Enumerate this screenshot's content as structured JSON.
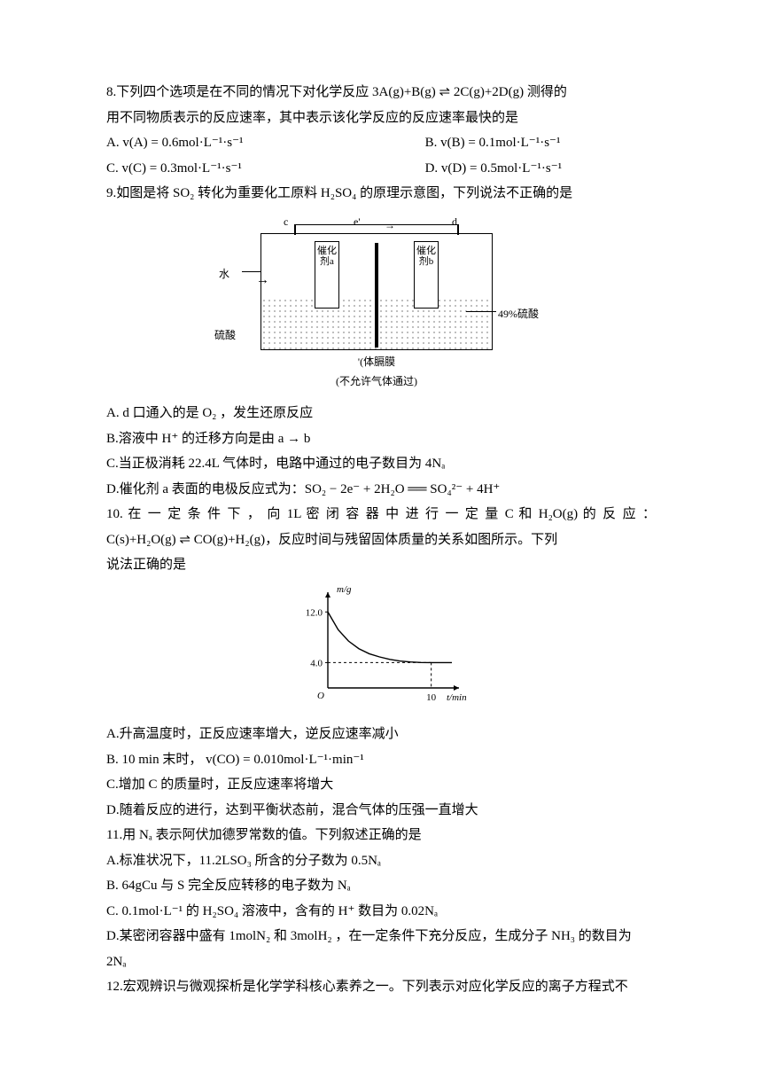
{
  "q8": {
    "stem_a": "8.下列四个选项是在不同的情况下对化学反应 3A(g)+B(g) ⇌ 2C(g)+2D(g) 测得的",
    "stem_b": "用不同物质表示的反应速率，其中表示该化学反应的反应速率最快的是",
    "A": "A. v(A) = 0.6mol·L⁻¹·s⁻¹",
    "B": "B. v(B) = 0.1mol·L⁻¹·s⁻¹",
    "C": "C. v(C) = 0.3mol·L⁻¹·s⁻¹",
    "D": "D. v(D) = 0.5mol·L⁻¹·s⁻¹"
  },
  "q9": {
    "stem": "9.如图是将 SO₂ 转化为重要化工原料 H₂SO₄ 的原理示意图，下列说法不正确的是",
    "diagram": {
      "top_labels": {
        "left": "c",
        "mid": "e'",
        "right": "d"
      },
      "water_label": "水",
      "electrode_left": "催化剂a",
      "electrode_right": "催化剂b",
      "acid_left": "硫酸",
      "acid_right": "49%硫酸",
      "bottom_caption": "'(体膈膜\n(不允许气体通过)",
      "colors": {
        "stroke": "#000000",
        "bg": "#ffffff"
      }
    },
    "A": "A. d 口通入的是 O₂ ，发生还原反应",
    "B": "B.溶液中 H⁺ 的迁移方向是由 a → b",
    "C": "C.当正极消耗 22.4L 气体时，电路中通过的电子数目为 4Nₐ",
    "D": "D.催化剂 a 表面的电极反应式为：SO₂ − 2e⁻ + 2H₂O ══ SO₄²⁻ + 4H⁺"
  },
  "q10": {
    "stem_a": "10. 在 一 定 条 件 下 ， 向 1L 密 闭 容 器 中 进 行 一 定 量 C 和 H₂O(g) 的 反 应 ：",
    "stem_b1": "C(s)+H₂O(g) ⇌ CO(g)+H₂(g)",
    "stem_b2": "，反应时间与残留固体质量的关系如图所示。下列",
    "stem_c": "说法正确的是",
    "chart": {
      "type": "line-decay",
      "y_label": "m/g",
      "x_label": "t/min",
      "y_ticks": [
        4.0,
        12.0
      ],
      "x_ticks": [
        10
      ],
      "x_range": [
        0,
        12
      ],
      "y_range": [
        0,
        14
      ],
      "points": [
        [
          0,
          12
        ],
        [
          1,
          9.2
        ],
        [
          2,
          7.4
        ],
        [
          3,
          6.2
        ],
        [
          4,
          5.4
        ],
        [
          5,
          4.9
        ],
        [
          6,
          4.5
        ],
        [
          7,
          4.25
        ],
        [
          8,
          4.1
        ],
        [
          9,
          4.02
        ],
        [
          10,
          4.0
        ],
        [
          12,
          4.0
        ]
      ],
      "colors": {
        "axis": "#000000",
        "curve": "#000000",
        "dash": "#000000"
      },
      "line_width": 1.4,
      "font_size": 11
    },
    "A": "A.升高温度时，正反应速率增大，逆反应速率减小",
    "B": "B. 10 min 末时， v(CO) = 0.010mol·L⁻¹·min⁻¹",
    "C": "C.增加 C 的质量时，正反应速率将增大",
    "D": "D.随着反应的进行，达到平衡状态前，混合气体的压强一直增大"
  },
  "q11": {
    "stem": "11.用 Nₐ 表示阿伏加德罗常数的值。下列叙述正确的是",
    "A": "A.标准状况下，11.2LSO₃ 所含的分子数为 0.5Nₐ",
    "B": "B. 64gCu 与 S 完全反应转移的电子数为 Nₐ",
    "C": "C. 0.1mol·L⁻¹ 的 H₂SO₄ 溶液中，含有的 H⁺ 数目为 0.02Nₐ",
    "D1": "D.某密闭容器中盛有 1molN₂ 和 3molH₂ ，在一定条件下充分反应，生成分子 NH₃ 的数目为",
    "D2": "2Nₐ"
  },
  "q12": {
    "stem": "12.宏观辨识与微观探析是化学学科核心素养之一。下列表示对应化学反应的离子方程式不"
  }
}
